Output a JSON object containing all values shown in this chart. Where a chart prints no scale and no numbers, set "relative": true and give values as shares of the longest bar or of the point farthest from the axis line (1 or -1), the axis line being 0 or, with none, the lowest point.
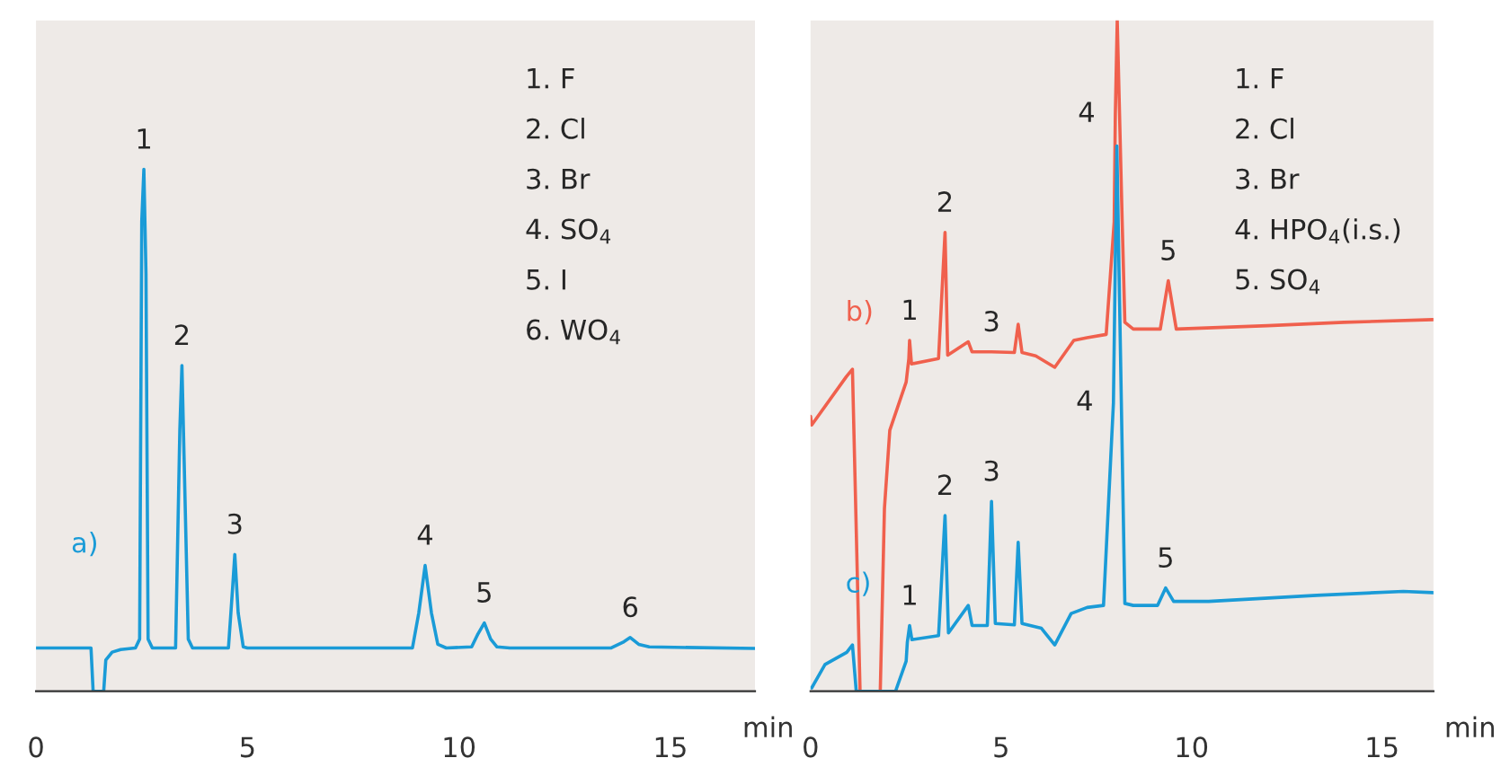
{
  "chart_data": [
    {
      "type": "line",
      "relative": true,
      "xlabel": "min",
      "xlim": [
        0,
        17
      ],
      "xticks": [
        0,
        5,
        10,
        15
      ],
      "series": [
        {
          "name": "a)",
          "color": "#1a9bd7",
          "x": [
            0,
            1.3,
            1.35,
            1.6,
            1.65,
            1.8,
            2.0,
            2.35,
            2.45,
            2.5,
            2.55,
            2.6,
            2.65,
            2.75,
            3.3,
            3.4,
            3.45,
            3.5,
            3.6,
            3.7,
            4.55,
            4.65,
            4.7,
            4.78,
            4.9,
            5.0,
            8.9,
            9.05,
            9.2,
            9.35,
            9.5,
            9.7,
            10.3,
            10.45,
            10.6,
            10.75,
            10.9,
            11.2,
            13.6,
            13.9,
            14.05,
            14.25,
            14.5,
            17
          ],
          "values": [
            0.083,
            0.083,
            0,
            0,
            0.06,
            0.075,
            0.08,
            0.083,
            0.1,
            0.9,
            1.0,
            0.8,
            0.1,
            0.083,
            0.083,
            0.5,
            0.624,
            0.45,
            0.1,
            0.083,
            0.083,
            0.2,
            0.262,
            0.15,
            0.085,
            0.083,
            0.083,
            0.15,
            0.241,
            0.15,
            0.09,
            0.083,
            0.085,
            0.11,
            0.131,
            0.1,
            0.085,
            0.083,
            0.083,
            0.095,
            0.103,
            0.09,
            0.085,
            0.082
          ]
        }
      ],
      "annotations": [
        "1. F",
        "2. Cl",
        "3. Br",
        "4. SO$_{4}$",
        "5. I",
        "6. WO$_{4}$",
        {
          "text": "1",
          "x": 2.55,
          "y": 1.0
        },
        {
          "text": "2",
          "x": 3.45,
          "y": 0.624
        },
        {
          "text": "3",
          "x": 4.7,
          "y": 0.262
        },
        {
          "text": "4",
          "x": 9.2,
          "y": 0.241
        },
        {
          "text": "5",
          "x": 10.6,
          "y": 0.131
        },
        {
          "text": "6",
          "x": 14.05,
          "y": 0.103
        }
      ]
    },
    {
      "type": "line",
      "relative": true,
      "xlabel": "min",
      "xlim": [
        0,
        16.35
      ],
      "xticks": [
        0,
        5,
        10,
        15
      ],
      "series": [
        {
          "name": "b)",
          "color": "#f0604d",
          "x": [
            0,
            0.03,
            0.94,
            1.1,
            1.3,
            1.83,
            1.94,
            2.08,
            2.51,
            2.58,
            2.6,
            2.65,
            3.36,
            3.53,
            3.6,
            4.14,
            4.24,
            4.75,
            5.35,
            5.45,
            5.55,
            5.91,
            6.41,
            6.91,
            7.26,
            7.76,
            7.97,
            8.0,
            8.05,
            8.18,
            8.25,
            8.47,
            9.18,
            9.39,
            9.6,
            12,
            14,
            16.34
          ],
          "values": [
            0.41,
            0.397,
            0.469,
            0.48,
            0,
            0,
            0.273,
            0.389,
            0.461,
            0.496,
            0.523,
            0.488,
            0.496,
            0.684,
            0.501,
            0.521,
            0.506,
            0.506,
            0.505,
            0.547,
            0.505,
            0.5,
            0.483,
            0.523,
            0.527,
            0.532,
            0.7,
            0.86,
            1.0,
            0.7,
            0.55,
            0.54,
            0.54,
            0.612,
            0.54,
            0.545,
            0.55,
            0.554
          ]
        },
        {
          "name": "c)",
          "color": "#1a9bd7",
          "x": [
            0,
            0.03,
            0.38,
            0.95,
            1.1,
            1.2,
            2.23,
            2.51,
            2.54,
            2.6,
            2.66,
            3.36,
            3.53,
            3.62,
            4.14,
            4.24,
            4.64,
            4.75,
            4.85,
            5.35,
            5.45,
            5.55,
            6.06,
            6.41,
            6.84,
            7.26,
            7.69,
            7.95,
            8.04,
            8.25,
            8.47,
            9.11,
            9.32,
            9.53,
            10.45,
            13.29,
            15.56,
            16.34
          ],
          "values": [
            0.005,
            0.005,
            0.04,
            0.058,
            0.069,
            0,
            0,
            0.045,
            0.073,
            0.098,
            0.077,
            0.083,
            0.262,
            0.087,
            0.128,
            0.098,
            0.098,
            0.283,
            0.101,
            0.099,
            0.222,
            0.101,
            0.094,
            0.069,
            0.116,
            0.125,
            0.128,
            0.43,
            0.813,
            0.131,
            0.128,
            0.128,
            0.154,
            0.134,
            0.134,
            0.143,
            0.149,
            0.147
          ]
        }
      ],
      "annotations": [
        "1. F",
        "2. Cl",
        "3. Br",
        "4. HPO$_{4}$(i.s.)",
        "5. SO$_{4}$",
        {
          "text": "1",
          "x": 2.6,
          "y": 0.523
        },
        {
          "text": "2",
          "x": 3.53,
          "y": 0.684
        },
        {
          "text": "3",
          "x": 4.75,
          "y": 0.506
        },
        {
          "text": "4",
          "x": 8.0,
          "y": 0.86
        },
        {
          "text": "5",
          "x": 9.39,
          "y": 0.612
        },
        {
          "text": "1",
          "x": 2.6,
          "y": 0.098
        },
        {
          "text": "2",
          "x": 3.53,
          "y": 0.262
        },
        {
          "text": "3",
          "x": 4.75,
          "y": 0.283
        },
        {
          "text": "4",
          "x": 7.95,
          "y": 0.43
        },
        {
          "text": "5",
          "x": 9.32,
          "y": 0.154
        }
      ]
    }
  ]
}
